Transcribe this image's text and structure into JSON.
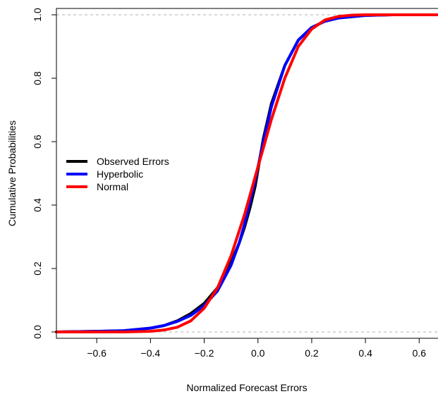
{
  "chart_data": {
    "type": "line",
    "title": "",
    "xlabel": "Normalized Forecast Errors",
    "ylabel": "Cumulative Probabilities",
    "xlim": [
      -0.75,
      0.67
    ],
    "ylim": [
      -0.02,
      1.02
    ],
    "x_ticks": [
      -0.6,
      -0.4,
      -0.2,
      0.0,
      0.2,
      0.4,
      0.6
    ],
    "x_tick_labels": [
      "−0.6",
      "−0.4",
      "−0.2",
      "0.0",
      "0.2",
      "0.4",
      "0.6"
    ],
    "y_ticks": [
      0.0,
      0.2,
      0.4,
      0.6,
      0.8,
      1.0
    ],
    "y_tick_labels": [
      "0.0",
      "0.2",
      "0.4",
      "0.6",
      "0.8",
      "1.0"
    ],
    "reference_lines_y": [
      0.0,
      1.0
    ],
    "grid": false,
    "legend_position": "left",
    "series": [
      {
        "name": "Observed Errors",
        "color": "#000000",
        "x": [
          -0.75,
          -0.6,
          -0.5,
          -0.4,
          -0.35,
          -0.3,
          -0.25,
          -0.2,
          -0.15,
          -0.1,
          -0.07,
          -0.05,
          -0.03,
          -0.01,
          0.0,
          0.01,
          0.02,
          0.05,
          0.1,
          0.15,
          0.2,
          0.25,
          0.3,
          0.4,
          0.5,
          0.67
        ],
        "y": [
          0.0,
          0.002,
          0.004,
          0.012,
          0.02,
          0.035,
          0.058,
          0.09,
          0.14,
          0.22,
          0.28,
          0.33,
          0.39,
          0.46,
          0.51,
          0.56,
          0.61,
          0.72,
          0.84,
          0.92,
          0.96,
          0.98,
          0.99,
          0.998,
          1.0,
          1.0
        ]
      },
      {
        "name": "Hyperbolic",
        "color": "#0000ff",
        "x": [
          -0.75,
          -0.6,
          -0.5,
          -0.4,
          -0.35,
          -0.3,
          -0.25,
          -0.2,
          -0.15,
          -0.1,
          -0.07,
          -0.05,
          -0.03,
          -0.01,
          0.0,
          0.01,
          0.02,
          0.05,
          0.1,
          0.15,
          0.2,
          0.25,
          0.3,
          0.4,
          0.5,
          0.67
        ],
        "y": [
          0.0,
          0.002,
          0.004,
          0.012,
          0.02,
          0.033,
          0.052,
          0.083,
          0.13,
          0.21,
          0.28,
          0.34,
          0.41,
          0.48,
          0.52,
          0.56,
          0.6,
          0.71,
          0.84,
          0.92,
          0.96,
          0.98,
          0.99,
          0.998,
          1.0,
          1.0
        ]
      },
      {
        "name": "Normal",
        "color": "#ff0000",
        "x": [
          -0.75,
          -0.5,
          -0.4,
          -0.35,
          -0.3,
          -0.25,
          -0.2,
          -0.15,
          -0.1,
          -0.05,
          -0.02,
          0.0,
          0.02,
          0.05,
          0.1,
          0.15,
          0.2,
          0.25,
          0.3,
          0.35,
          0.4,
          0.5,
          0.67
        ],
        "y": [
          0.0,
          0.0,
          0.002,
          0.006,
          0.015,
          0.035,
          0.075,
          0.14,
          0.24,
          0.37,
          0.46,
          0.52,
          0.58,
          0.67,
          0.8,
          0.9,
          0.955,
          0.984,
          0.995,
          0.999,
          1.0,
          1.0,
          1.0
        ]
      }
    ]
  }
}
